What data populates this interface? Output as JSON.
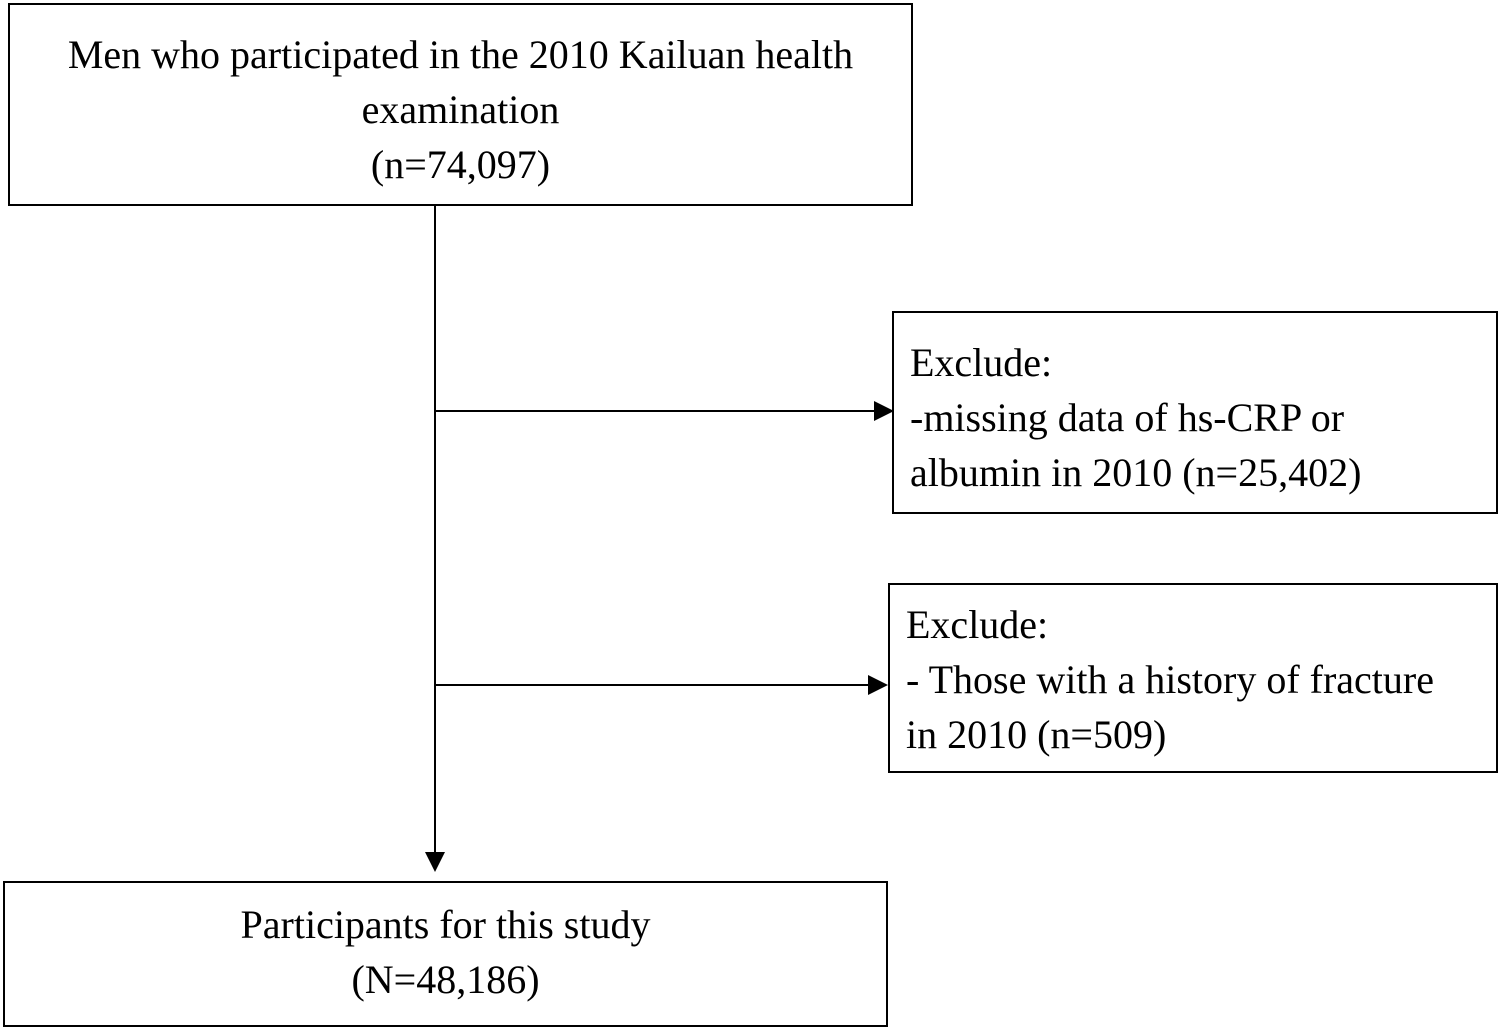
{
  "boxes": {
    "start": {
      "lines": [
        "Men who participated in the 2010 Kailuan health",
        "examination",
        "(n=74,097)"
      ]
    },
    "exclude1": {
      "lines": [
        "Exclude:",
        "-missing data of hs-CRP or",
        "albumin in 2010 (n=25,402)"
      ]
    },
    "exclude2": {
      "lines": [
        "Exclude:",
        "- Those with a history of fracture",
        "in 2010 (n=509)"
      ]
    },
    "final": {
      "lines": [
        "Participants for this study",
        "(N=48,186)"
      ]
    }
  }
}
